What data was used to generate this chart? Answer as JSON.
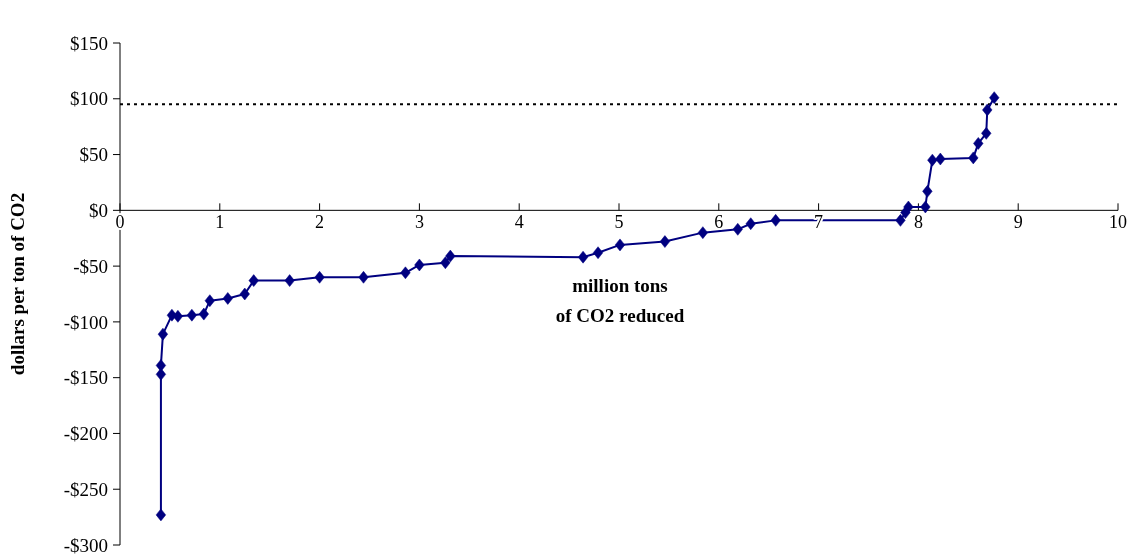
{
  "chart_data": {
    "type": "line",
    "xlabel": "million tons\nof CO2 reduced",
    "ylabel": "dollars per ton of CO2",
    "x": [
      0.41,
      0.41,
      0.41,
      0.43,
      0.52,
      0.58,
      0.72,
      0.84,
      0.9,
      1.08,
      1.25,
      1.34,
      1.7,
      2.0,
      2.44,
      2.86,
      3.0,
      3.26,
      3.31,
      4.64,
      4.79,
      5.01,
      5.46,
      5.84,
      6.19,
      6.32,
      6.57,
      7.82,
      7.87,
      7.9,
      8.07,
      8.09,
      8.14,
      8.22,
      8.55,
      8.6,
      8.68,
      8.69,
      8.76
    ],
    "series": [
      {
        "color": "#000080",
        "values": [
          -273,
          -147,
          -139,
          -111,
          -94,
          -95,
          -94,
          -93,
          -81,
          -79,
          -75,
          -63,
          -63,
          -60,
          -60,
          -56,
          -49,
          -47,
          -41,
          -42,
          -38,
          -31,
          -28,
          -20,
          -17,
          -12,
          -9,
          -9,
          -2,
          3,
          3,
          17,
          45,
          46,
          47,
          60,
          69,
          90,
          101
        ]
      }
    ],
    "xlim": [
      0,
      10
    ],
    "xticks": [
      0,
      1,
      2,
      3,
      4,
      5,
      6,
      7,
      8,
      9,
      10
    ],
    "ylim": [
      -300,
      150
    ],
    "yticks": [
      {
        "value": -300,
        "label": "-$300"
      },
      {
        "value": -250,
        "label": "-$250"
      },
      {
        "value": -200,
        "label": "-$200"
      },
      {
        "value": -150,
        "label": "-$150"
      },
      {
        "value": -100,
        "label": "-$100"
      },
      {
        "value": -50,
        "label": "-$50"
      },
      {
        "value": 0,
        "label": "$0"
      },
      {
        "value": 50,
        "label": "$50"
      },
      {
        "value": 100,
        "label": "$100"
      },
      {
        "value": 150,
        "label": "$150"
      }
    ],
    "ref_lines": [
      {
        "axis": "y",
        "value": 95,
        "color": "#000000",
        "line_style": "dotted"
      }
    ],
    "marker": "diamond",
    "line_style": "solid",
    "grid": false
  }
}
